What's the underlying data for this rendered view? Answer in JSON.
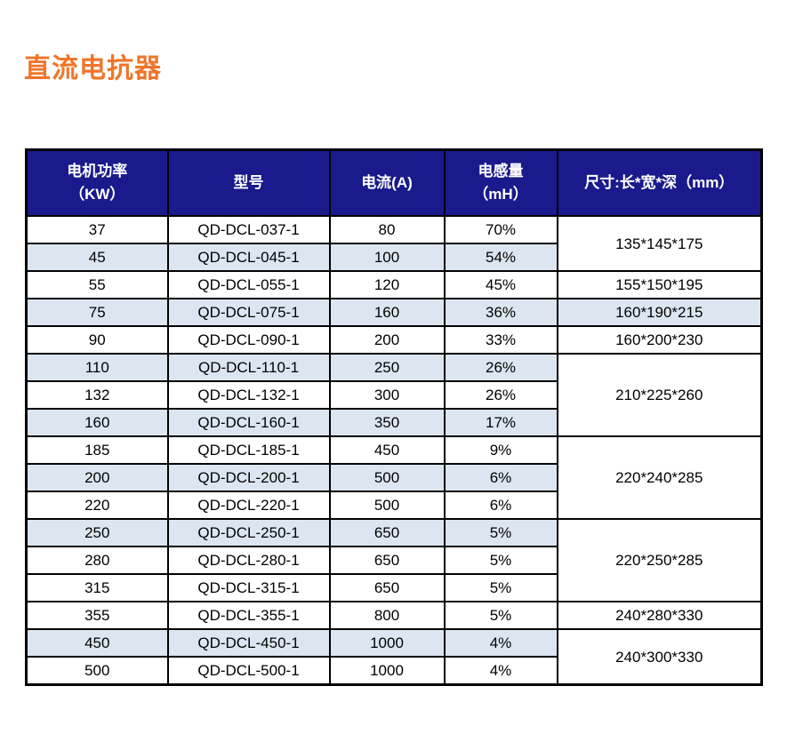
{
  "page": {
    "title": "直流电抗器"
  },
  "colors": {
    "title_orange": "#f0752a",
    "header_navy": "#1a1a8c",
    "row_shade_blue": "#dce6f1",
    "border_black": "#000000"
  },
  "table": {
    "headers": [
      {
        "line1": "电机功率",
        "line2": "（KW）"
      },
      {
        "line1": "型号",
        "line2": ""
      },
      {
        "line1": "电流(A)",
        "line2": ""
      },
      {
        "line1": "电感量",
        "line2": "（mH）"
      },
      {
        "line1": "尺寸:长*宽*深（mm）",
        "line2": ""
      }
    ],
    "rows": [
      {
        "power": "37",
        "model": "QD-DCL-037-1",
        "current": "80",
        "inductance": "70%",
        "shaded": false,
        "dim": {
          "text": "135*145*175",
          "span": 2,
          "shaded": false
        }
      },
      {
        "power": "45",
        "model": "QD-DCL-045-1",
        "current": "100",
        "inductance": "54%",
        "shaded": true
      },
      {
        "power": "55",
        "model": "QD-DCL-055-1",
        "current": "120",
        "inductance": "45%",
        "shaded": false,
        "dim": {
          "text": "155*150*195",
          "span": 1,
          "shaded": false
        }
      },
      {
        "power": "75",
        "model": "QD-DCL-075-1",
        "current": "160",
        "inductance": "36%",
        "shaded": true,
        "dim": {
          "text": "160*190*215",
          "span": 1,
          "shaded": true
        }
      },
      {
        "power": "90",
        "model": "QD-DCL-090-1",
        "current": "200",
        "inductance": "33%",
        "shaded": false,
        "dim": {
          "text": "160*200*230",
          "span": 1,
          "shaded": false
        }
      },
      {
        "power": "110",
        "model": "QD-DCL-110-1",
        "current": "250",
        "inductance": "26%",
        "shaded": true,
        "dim": {
          "text": "210*225*260",
          "span": 3,
          "shaded": false
        }
      },
      {
        "power": "132",
        "model": "QD-DCL-132-1",
        "current": "300",
        "inductance": "26%",
        "shaded": false
      },
      {
        "power": "160",
        "model": "QD-DCL-160-1",
        "current": "350",
        "inductance": "17%",
        "shaded": true
      },
      {
        "power": "185",
        "model": "QD-DCL-185-1",
        "current": "450",
        "inductance": "9%",
        "shaded": false,
        "dim": {
          "text": "220*240*285",
          "span": 3,
          "shaded": false
        }
      },
      {
        "power": "200",
        "model": "QD-DCL-200-1",
        "current": "500",
        "inductance": "6%",
        "shaded": true
      },
      {
        "power": "220",
        "model": "QD-DCL-220-1",
        "current": "500",
        "inductance": "6%",
        "shaded": false
      },
      {
        "power": "250",
        "model": "QD-DCL-250-1",
        "current": "650",
        "inductance": "5%",
        "shaded": true,
        "dim": {
          "text": "220*250*285",
          "span": 3,
          "shaded": false
        }
      },
      {
        "power": "280",
        "model": "QD-DCL-280-1",
        "current": "650",
        "inductance": "5%",
        "shaded": false
      },
      {
        "power": "315",
        "model": "QD-DCL-315-1",
        "current": "650",
        "inductance": "5%",
        "shaded": false
      },
      {
        "power": "355",
        "model": "QD-DCL-355-1",
        "current": "800",
        "inductance": "5%",
        "shaded": false,
        "dim": {
          "text": "240*280*330",
          "span": 1,
          "shaded": false
        }
      },
      {
        "power": "450",
        "model": "QD-DCL-450-1",
        "current": "1000",
        "inductance": "4%",
        "shaded": true,
        "dim": {
          "text": "240*300*330",
          "span": 2,
          "shaded": false
        }
      },
      {
        "power": "500",
        "model": "QD-DCL-500-1",
        "current": "1000",
        "inductance": "4%",
        "shaded": false
      }
    ]
  }
}
